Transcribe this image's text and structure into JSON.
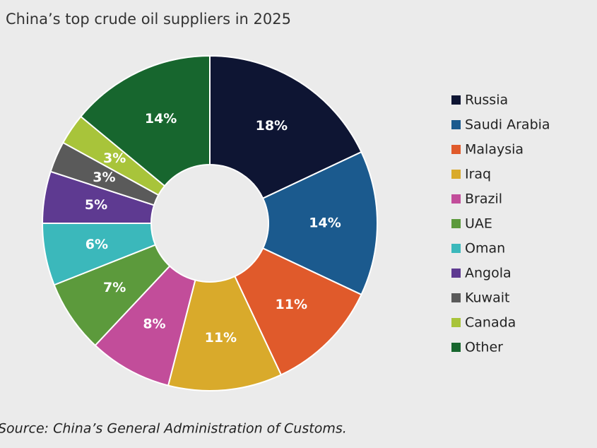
{
  "chart_data": {
    "type": "donut",
    "title": "China’s top crude oil suppliers in 2025",
    "source": "Source: China’s General Administration of Customs.",
    "categories": [
      "Russia",
      "Saudi Arabia",
      "Malaysia",
      "Iraq",
      "Brazil",
      "UAE",
      "Oman",
      "Angola",
      "Kuwait",
      "Canada",
      "Other"
    ],
    "values": [
      18,
      14,
      11,
      11,
      8,
      7,
      6,
      5,
      3,
      3,
      14
    ],
    "value_labels": [
      "18%",
      "14%",
      "11%",
      "11%",
      "8%",
      "7%",
      "6%",
      "5%",
      "3%",
      "3%",
      "14%"
    ],
    "colors": [
      "#0e1533",
      "#1b5a8e",
      "#e05a2b",
      "#d9aa2b",
      "#c24d9a",
      "#5c9a3c",
      "#3bb8bb",
      "#5e3a91",
      "#5a5a5a",
      "#a8c43a",
      "#17662e"
    ]
  }
}
